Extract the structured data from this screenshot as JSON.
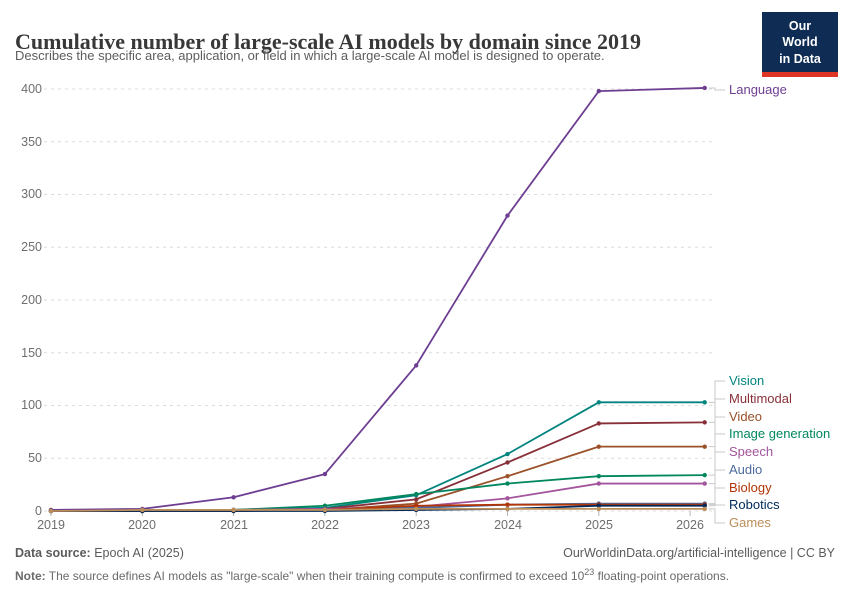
{
  "header": {
    "logo": {
      "line1": "Our World",
      "line2": "in Data",
      "bg_color": "#0f2d54",
      "accent_color": "#dd3424"
    }
  },
  "chart_data": {
    "type": "line",
    "title": "Cumulative number of large-scale AI models by domain since 2019",
    "subtitle": "Describes the specific area, application, or field in which a large-scale AI model is designed to operate.",
    "x": [
      2019,
      2020,
      2021,
      2022,
      2023,
      2024,
      2025,
      2026.16
    ],
    "x_tick_years": [
      2019,
      2020,
      2021,
      2022,
      2023,
      2024,
      2025,
      2026
    ],
    "x_tick_labels": [
      "2019",
      "2020",
      "2021",
      "2022",
      "2023",
      "2024",
      "2025",
      "2026"
    ],
    "ytick_values": [
      0,
      50,
      100,
      150,
      200,
      250,
      300,
      350,
      400
    ],
    "ytick_labels": [
      "400",
      "350",
      "300",
      "250",
      "200",
      "150",
      "100",
      "50",
      "0"
    ],
    "ylim": [
      0,
      400
    ],
    "grid": "dashed horizontal gridlines",
    "legend_position": "right, direct line labels with gray connectors",
    "series": [
      {
        "name": "Language",
        "color": "#6D3E91",
        "values": [
          1,
          2,
          13,
          35,
          138,
          280,
          398,
          401
        ]
      },
      {
        "name": "Vision",
        "color": "#00847E",
        "values": [
          0,
          0,
          1,
          3,
          15,
          54,
          103,
          103
        ]
      },
      {
        "name": "Multimodal",
        "color": "#883039",
        "values": [
          0,
          0,
          1,
          2,
          11,
          46,
          83,
          84
        ]
      },
      {
        "name": "Video",
        "color": "#9A5129",
        "values": [
          0,
          0,
          0,
          1,
          7,
          33,
          61,
          61
        ]
      },
      {
        "name": "Image generation",
        "color": "#00875E",
        "values": [
          0,
          0,
          1,
          5,
          16,
          26,
          33,
          34
        ]
      },
      {
        "name": "Speech",
        "color": "#A2559C",
        "values": [
          0,
          0,
          1,
          2,
          4,
          12,
          26,
          26
        ]
      },
      {
        "name": "Audio",
        "color": "#4C6A9C",
        "values": [
          0,
          0,
          0,
          1,
          3,
          6,
          7,
          7
        ]
      },
      {
        "name": "Biology",
        "color": "#B13507",
        "values": [
          0,
          0,
          0,
          1,
          5,
          6,
          6,
          6
        ]
      },
      {
        "name": "Robotics",
        "color": "#00295B",
        "values": [
          0,
          0,
          0,
          0,
          1,
          2,
          5,
          5
        ]
      },
      {
        "name": "Games",
        "color": "#BC8E5A",
        "values": [
          0,
          1,
          1,
          1,
          2,
          2,
          2,
          2
        ]
      }
    ]
  },
  "footer": {
    "source_label": "Data source:",
    "source_value": "Epoch AI (2025)",
    "license_text": "OurWorldinData.org/artificial-intelligence | CC BY",
    "note_label": "Note:",
    "note_before": "The source defines AI models as \"large-scale\" when their training compute is confirmed to exceed 10",
    "note_exponent": "23",
    "note_after": " floating-point operations."
  }
}
